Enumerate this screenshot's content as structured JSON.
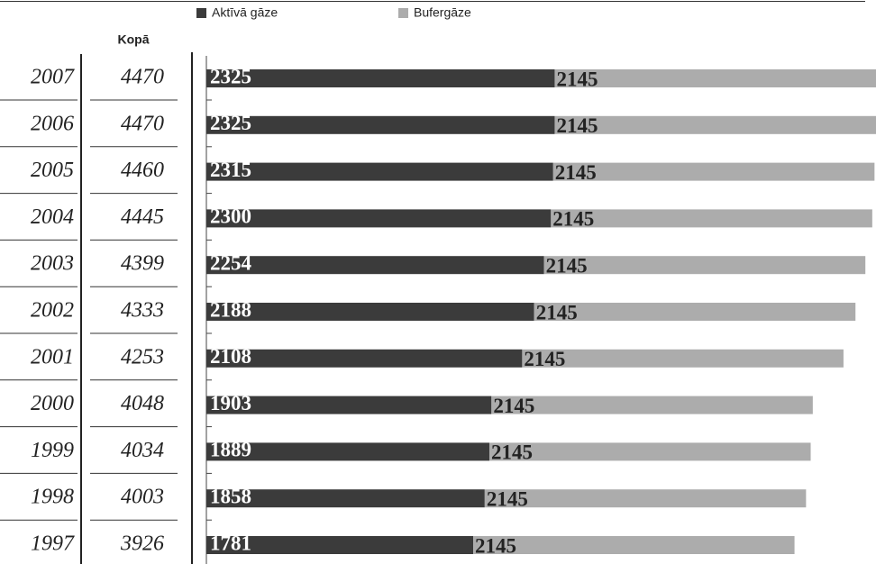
{
  "chart_data": {
    "type": "stacked-bar-horizontal",
    "categories": [
      "2007",
      "2006",
      "2005",
      "2004",
      "2003",
      "2002",
      "2001",
      "2000",
      "1999",
      "1998",
      "1997"
    ],
    "totals": {
      "label": "Kopā",
      "values": [
        4470,
        4470,
        4460,
        4445,
        4399,
        4333,
        4253,
        4048,
        4034,
        4003,
        3926
      ]
    },
    "series": [
      {
        "name": "Aktīvā gāze",
        "color": "#3b3b3b",
        "values": [
          2325,
          2325,
          2315,
          2300,
          2254,
          2188,
          2108,
          1903,
          1889,
          1858,
          1781
        ]
      },
      {
        "name": "Bufergāze",
        "color": "#acacac",
        "values": [
          2145,
          2145,
          2145,
          2145,
          2145,
          2145,
          2145,
          2145,
          2145,
          2145,
          2145
        ]
      }
    ],
    "xlim": [
      0,
      4470
    ]
  }
}
